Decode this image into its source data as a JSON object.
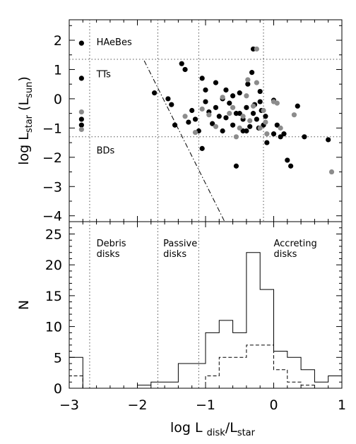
{
  "chart_data": [
    {
      "type": "scatter",
      "xlim": [
        -3,
        1
      ],
      "ylim": [
        -4.2,
        2.7
      ],
      "ylabel": {
        "main": "log L",
        "sub1": "star",
        "open": " (L",
        "sub2": "sun",
        "close": ")"
      },
      "yticks": [
        -4,
        -3,
        -2,
        -1,
        0,
        1,
        2
      ],
      "grid": false,
      "legend": "none",
      "hlines": [
        1.35,
        -1.3
      ],
      "vlines": [
        -2.7,
        -1.7,
        -1.1,
        -0.15
      ],
      "diagonal": {
        "x": [
          -1.9,
          -0.72
        ],
        "y": [
          1.3,
          -4.2
        ]
      },
      "annotations": [
        {
          "text": "HAeBes",
          "x": -2.6,
          "y": 1.95
        },
        {
          "text": "TTs",
          "x": -2.6,
          "y": 0.85
        },
        {
          "text": "BDs",
          "x": -2.6,
          "y": -1.75
        }
      ],
      "series": [
        {
          "color": "#000000",
          "points": [
            [
              -2.82,
              1.9
            ],
            [
              -2.82,
              0.7
            ],
            [
              -2.82,
              -0.7
            ],
            [
              -2.82,
              -0.9
            ],
            [
              -1.75,
              0.2
            ],
            [
              -1.55,
              0.0
            ],
            [
              -1.5,
              -0.2
            ],
            [
              -1.45,
              -0.9
            ],
            [
              -1.35,
              1.2
            ],
            [
              -1.3,
              1.0
            ],
            [
              -1.25,
              -0.8
            ],
            [
              -1.2,
              -0.4
            ],
            [
              -1.15,
              -0.7
            ],
            [
              -1.05,
              0.7
            ],
            [
              -1.05,
              -1.7
            ],
            [
              -1.0,
              0.3
            ],
            [
              -1.0,
              -0.1
            ],
            [
              -0.95,
              -0.45
            ],
            [
              -0.9,
              -0.85
            ],
            [
              -0.85,
              0.55
            ],
            [
              -0.85,
              -0.3
            ],
            [
              -0.8,
              -0.6
            ],
            [
              -0.75,
              -1.1
            ],
            [
              -0.7,
              0.3
            ],
            [
              -0.7,
              -0.65
            ],
            [
              -0.65,
              -0.15
            ],
            [
              -0.6,
              -0.9
            ],
            [
              -0.55,
              -0.5
            ],
            [
              -0.55,
              -2.3
            ],
            [
              -0.5,
              0.2
            ],
            [
              -0.45,
              -0.7
            ],
            [
              -0.45,
              -1.1
            ],
            [
              -0.4,
              -0.3
            ],
            [
              -0.38,
              0.5
            ],
            [
              -0.35,
              -0.95
            ],
            [
              -0.32,
              0.9
            ],
            [
              -0.3,
              1.7
            ],
            [
              -0.3,
              -0.5
            ],
            [
              -0.28,
              -0.2
            ],
            [
              -0.25,
              -0.7
            ],
            [
              -0.22,
              -1.0
            ],
            [
              -0.2,
              0.25
            ],
            [
              -0.18,
              -0.4
            ],
            [
              -0.15,
              -0.9
            ],
            [
              -0.12,
              -0.6
            ],
            [
              -0.1,
              -1.5
            ],
            [
              0.0,
              -0.05
            ],
            [
              0.0,
              -1.2
            ],
            [
              0.05,
              -0.9
            ],
            [
              0.1,
              -1.3
            ],
            [
              0.15,
              -1.2
            ],
            [
              0.2,
              -2.1
            ],
            [
              0.25,
              -2.3
            ],
            [
              0.35,
              -0.25
            ],
            [
              0.45,
              -1.3
            ],
            [
              0.8,
              -1.4
            ],
            [
              -0.4,
              -1.1
            ],
            [
              -0.6,
              0.1
            ],
            [
              -0.75,
              0.0
            ],
            [
              -1.1,
              -1.1
            ],
            [
              -0.5,
              -0.5
            ],
            [
              -0.2,
              -0.1
            ]
          ]
        },
        {
          "color": "#8c8c8c",
          "points": [
            [
              -2.82,
              -0.45
            ],
            [
              -2.82,
              -1.05
            ],
            [
              -1.15,
              -1.15
            ],
            [
              -1.05,
              -0.35
            ],
            [
              -0.95,
              -0.55
            ],
            [
              -0.85,
              -0.95
            ],
            [
              -0.75,
              0.05
            ],
            [
              -0.65,
              -0.5
            ],
            [
              -0.6,
              -0.3
            ],
            [
              -0.55,
              -1.3
            ],
            [
              -0.5,
              -1.0
            ],
            [
              -0.45,
              -0.6
            ],
            [
              -0.4,
              0.1
            ],
            [
              -0.38,
              0.65
            ],
            [
              -0.35,
              -0.75
            ],
            [
              -0.3,
              -0.25
            ],
            [
              -0.25,
              0.55
            ],
            [
              -0.2,
              -1.0
            ],
            [
              -0.15,
              -0.4
            ],
            [
              -0.12,
              -0.8
            ],
            [
              -0.1,
              -1.2
            ],
            [
              0.0,
              -0.1
            ],
            [
              0.05,
              -0.15
            ],
            [
              0.1,
              -1.0
            ],
            [
              0.3,
              -0.55
            ],
            [
              0.85,
              -2.5
            ],
            [
              -1.3,
              -0.6
            ],
            [
              -0.25,
              1.7
            ]
          ]
        }
      ]
    },
    {
      "type": "histogram",
      "xlim": [
        -3,
        1
      ],
      "ylim": [
        0,
        27
      ],
      "xlabel": {
        "main": "log L",
        "sub1": "disk",
        "slash": "/L",
        "sub2": "star"
      },
      "ylabel": "N",
      "xticks": [
        -3,
        -2,
        -1,
        0,
        1
      ],
      "yticks": [
        0,
        5,
        10,
        15,
        20,
        25
      ],
      "grid": false,
      "legend": "none",
      "vlines": [
        -2.7,
        -1.7,
        -1.1
      ],
      "annotations": [
        {
          "lines": [
            "Debris",
            "disks"
          ],
          "x": -2.6,
          "y": 23.0
        },
        {
          "lines": [
            "Passive",
            "disks"
          ],
          "x": -1.62,
          "y": 23.0
        },
        {
          "lines": [
            "Accreting",
            "disks"
          ],
          "x": 0.0,
          "y": 23.0
        }
      ],
      "bin_width": 0.2,
      "series": [
        {
          "style": "solid",
          "bins": [
            [
              -3.0,
              5
            ],
            [
              -2.8,
              0
            ],
            [
              -2.6,
              0
            ],
            [
              -2.4,
              0
            ],
            [
              -2.2,
              0
            ],
            [
              -2.0,
              0.5
            ],
            [
              -1.8,
              1
            ],
            [
              -1.6,
              1
            ],
            [
              -1.4,
              4
            ],
            [
              -1.2,
              4
            ],
            [
              -1.0,
              9
            ],
            [
              -0.8,
              11
            ],
            [
              -0.6,
              9
            ],
            [
              -0.4,
              22
            ],
            [
              -0.2,
              16
            ],
            [
              0.0,
              6
            ],
            [
              0.2,
              5
            ],
            [
              0.4,
              3
            ],
            [
              0.6,
              1
            ],
            [
              0.8,
              2
            ]
          ]
        },
        {
          "style": "dashed",
          "bins": [
            [
              -3.0,
              2
            ],
            [
              -2.8,
              0
            ],
            [
              -2.6,
              0
            ],
            [
              -2.4,
              0
            ],
            [
              -2.2,
              0
            ],
            [
              -2.0,
              0
            ],
            [
              -1.8,
              0
            ],
            [
              -1.6,
              0
            ],
            [
              -1.4,
              0
            ],
            [
              -1.2,
              0
            ],
            [
              -1.0,
              2
            ],
            [
              -0.8,
              5
            ],
            [
              -0.6,
              5
            ],
            [
              -0.4,
              7
            ],
            [
              -0.2,
              7
            ],
            [
              0.0,
              3
            ],
            [
              0.2,
              1
            ],
            [
              0.4,
              0.5
            ],
            [
              0.6,
              0
            ],
            [
              0.8,
              0
            ]
          ]
        }
      ]
    }
  ]
}
